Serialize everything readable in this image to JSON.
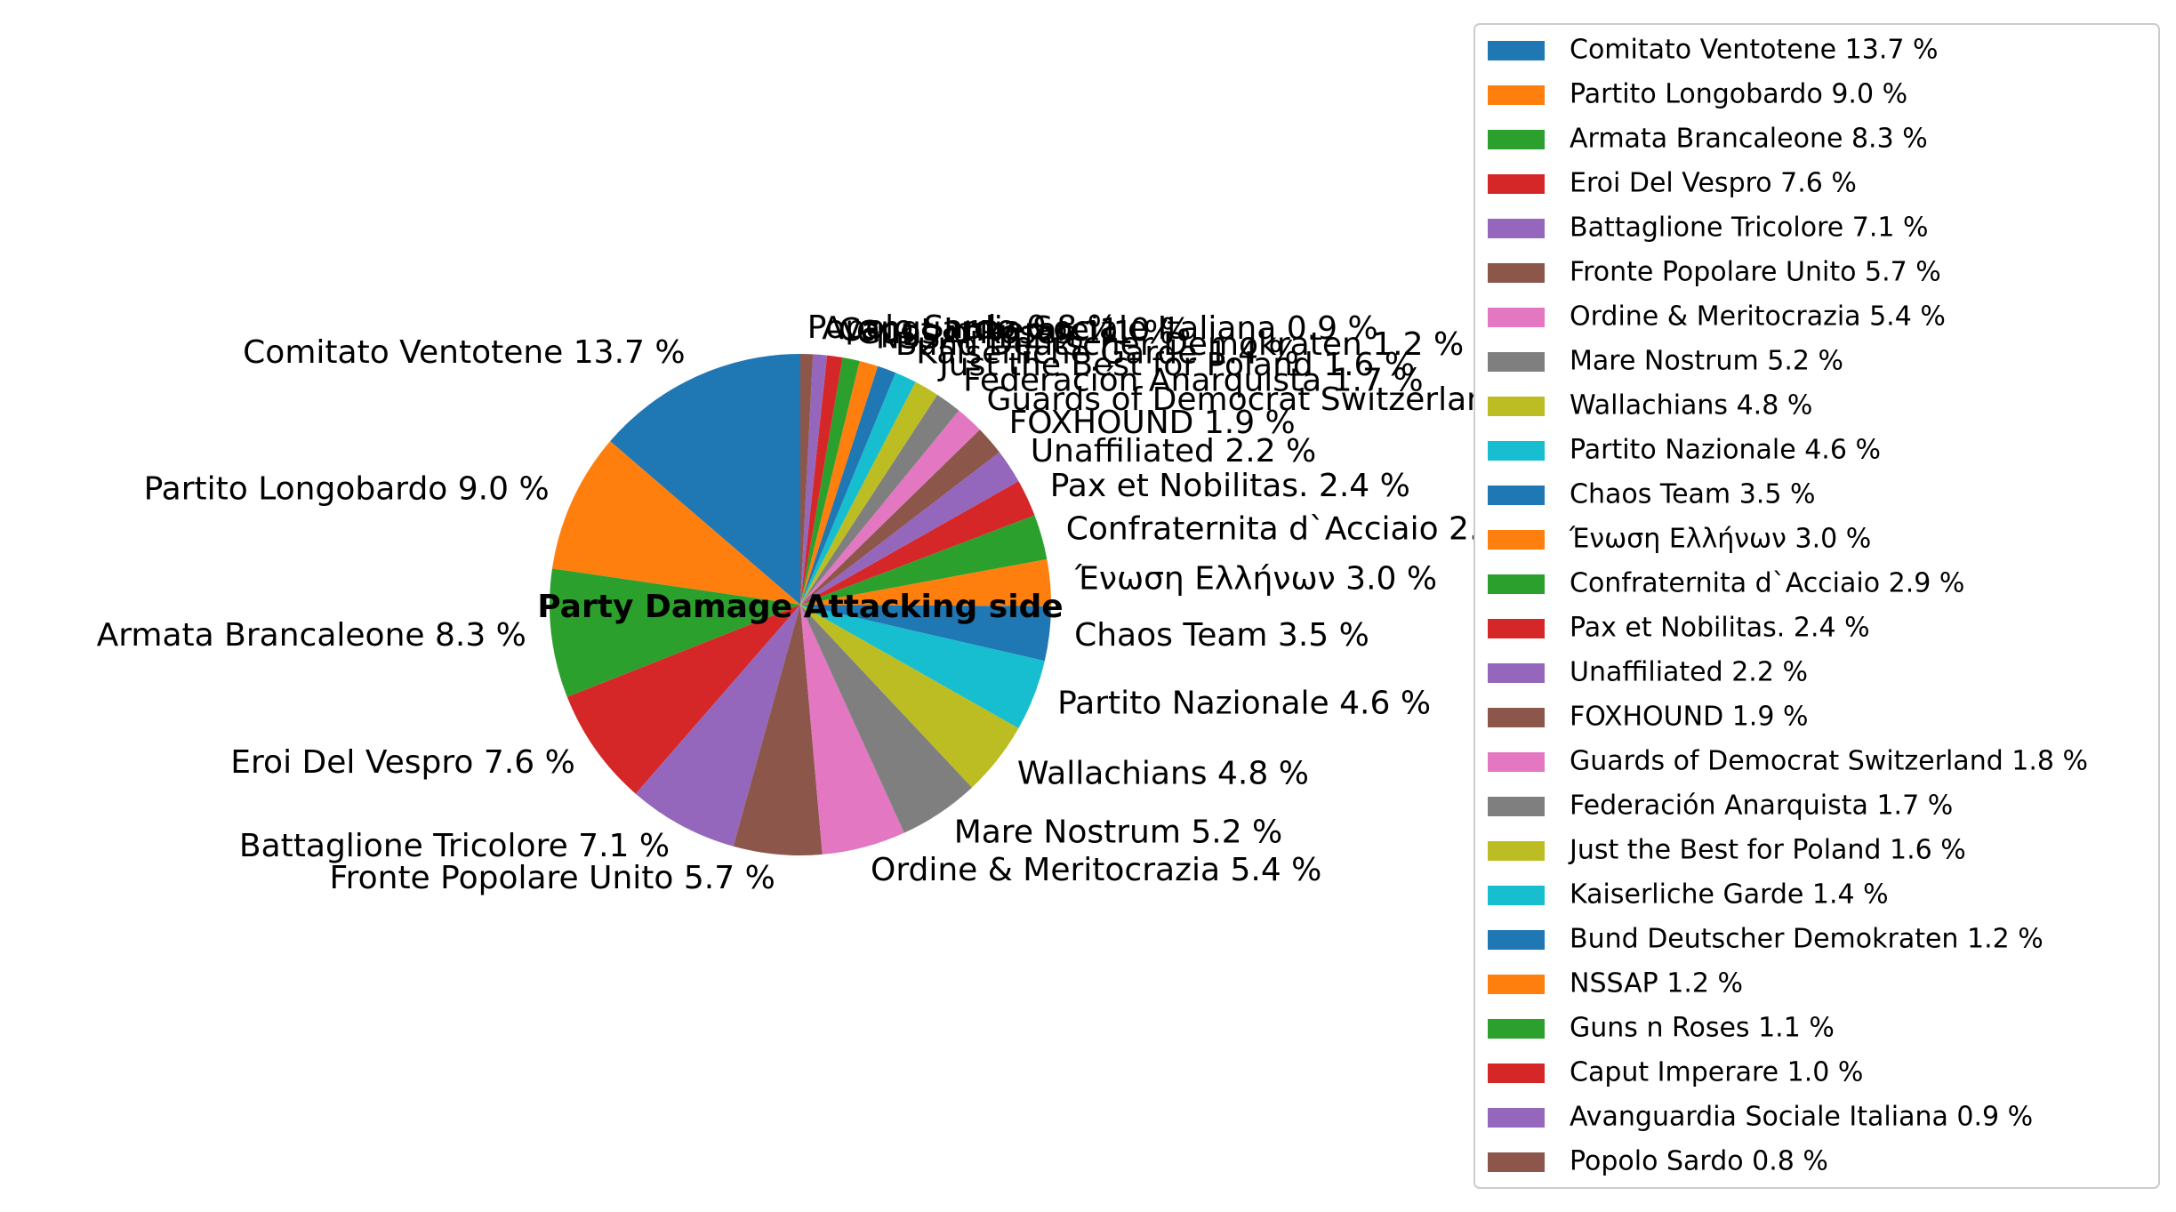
{
  "chart_data": {
    "type": "pie",
    "title": "Party Damage Attacking side",
    "legend_position": "right",
    "start_angle_deg": 90,
    "direction": "counterclockwise",
    "slices": [
      {
        "label": "Comitato Ventotene 13.7 %",
        "value": 13.7,
        "color": "#1f77b4"
      },
      {
        "label": "Partito Longobardo 9.0 %",
        "value": 9.0,
        "color": "#ff7f0e"
      },
      {
        "label": "Armata Brancaleone 8.3 %",
        "value": 8.3,
        "color": "#2ca02c"
      },
      {
        "label": "Eroi Del Vespro 7.6 %",
        "value": 7.6,
        "color": "#d62728"
      },
      {
        "label": "Battaglione Tricolore 7.1 %",
        "value": 7.1,
        "color": "#9467bd"
      },
      {
        "label": "Fronte Popolare Unito 5.7 %",
        "value": 5.7,
        "color": "#8c564b"
      },
      {
        "label": "Ordine & Meritocrazia 5.4 %",
        "value": 5.4,
        "color": "#e377c2"
      },
      {
        "label": "Mare Nostrum 5.2 %",
        "value": 5.2,
        "color": "#7f7f7f"
      },
      {
        "label": "Wallachians 4.8 %",
        "value": 4.8,
        "color": "#bcbd22"
      },
      {
        "label": "Partito Nazionale 4.6 %",
        "value": 4.6,
        "color": "#17becf"
      },
      {
        "label": "Chaos Team 3.5 %",
        "value": 3.5,
        "color": "#1f77b4"
      },
      {
        "label": "Ένωση Ελλήνων 3.0 %",
        "value": 3.0,
        "color": "#ff7f0e"
      },
      {
        "label": "Confraternita d`Acciaio 2.9 %",
        "value": 2.9,
        "color": "#2ca02c"
      },
      {
        "label": "Pax et Nobilitas. 2.4 %",
        "value": 2.4,
        "color": "#d62728"
      },
      {
        "label": "Unaffiliated 2.2 %",
        "value": 2.2,
        "color": "#9467bd"
      },
      {
        "label": "FOXHOUND 1.9 %",
        "value": 1.9,
        "color": "#8c564b"
      },
      {
        "label": "Guards of Democrat Switzerland 1.8 %",
        "value": 1.8,
        "color": "#e377c2"
      },
      {
        "label": "Federación Anarquista 1.7 %",
        "value": 1.7,
        "color": "#7f7f7f"
      },
      {
        "label": "Just the Best for Poland 1.6 %",
        "value": 1.6,
        "color": "#bcbd22"
      },
      {
        "label": "Kaiserliche Garde 1.4 %",
        "value": 1.4,
        "color": "#17becf"
      },
      {
        "label": "Bund Deutscher Demokraten 1.2 %",
        "value": 1.2,
        "color": "#1f77b4"
      },
      {
        "label": "NSSAP 1.2 %",
        "value": 1.2,
        "color": "#ff7f0e"
      },
      {
        "label": "Guns n Roses 1.1 %",
        "value": 1.1,
        "color": "#2ca02c"
      },
      {
        "label": "Caput Imperare 1.0 %",
        "value": 1.0,
        "color": "#d62728"
      },
      {
        "label": "Avanguardia Sociale Italiana 0.9 %",
        "value": 0.9,
        "color": "#9467bd"
      },
      {
        "label": "Popolo Sardo 0.8 %",
        "value": 0.8,
        "color": "#8c564b"
      }
    ]
  }
}
